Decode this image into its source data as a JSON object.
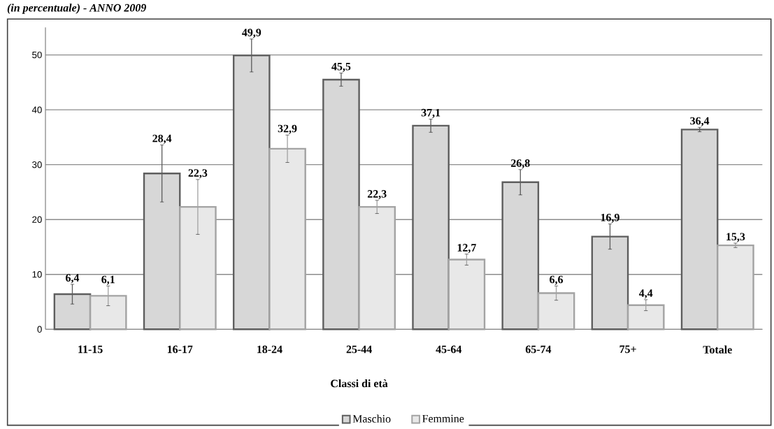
{
  "chart_data": {
    "type": "bar",
    "title": "(in percentuale) - ANNO 2009",
    "xlabel": "Classi di età",
    "categories": [
      "11-15",
      "16-17",
      "18-24",
      "25-44",
      "45-64",
      "65-74",
      "75+",
      "Totale"
    ],
    "series": [
      {
        "name": "Maschio",
        "color": "#5e5e5e",
        "values": [
          6.4,
          28.4,
          49.9,
          45.5,
          37.1,
          26.8,
          16.9,
          36.4
        ],
        "errors": [
          1.8,
          5.2,
          3,
          1.2,
          1.2,
          2.3,
          2.3,
          0.4
        ],
        "value_labels": [
          "6,4",
          "28,4",
          "49,9",
          "45,5",
          "37,1",
          "26,8",
          "16,9",
          "36,4"
        ]
      },
      {
        "name": "Femmine",
        "color": "#a3a3a3",
        "values": [
          6.1,
          22.3,
          32.9,
          22.3,
          12.7,
          6.6,
          4.4,
          15.3
        ],
        "errors": [
          1.8,
          5,
          2.5,
          1.2,
          1,
          1.3,
          1,
          0.4
        ],
        "value_labels": [
          "6,1",
          "22,3",
          "32,9",
          "22,3",
          "12,7",
          "6,6",
          "4,4",
          "15,3"
        ]
      }
    ],
    "ylim": [
      0,
      55
    ],
    "yticks": [
      0,
      10,
      20,
      30,
      40,
      50
    ],
    "grid": "y",
    "legend": "bottom"
  }
}
